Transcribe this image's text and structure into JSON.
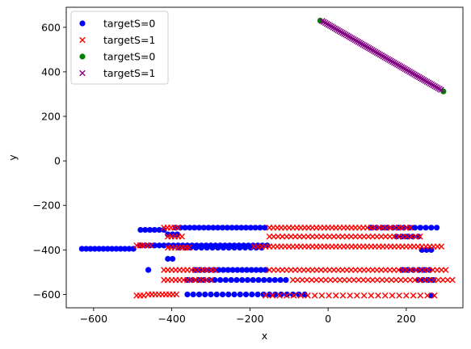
{
  "chart_data": {
    "type": "scatter",
    "title": "",
    "xlabel": "x",
    "ylabel": "y",
    "xlim": [
      -670,
      345
    ],
    "ylim": [
      -660,
      690
    ],
    "x_ticks": [
      -600,
      -400,
      -200,
      0,
      200
    ],
    "x_tick_labels": [
      "−600",
      "−400",
      "−200",
      "0",
      "200"
    ],
    "y_ticks": [
      -600,
      -400,
      -200,
      0,
      200,
      400,
      600
    ],
    "y_tick_labels": [
      "−600",
      "−400",
      "−200",
      "0",
      "200",
      "400",
      "600"
    ],
    "grid": false,
    "legend_position": "upper-left",
    "legend": [
      {
        "label": "targetS=0",
        "color": "#0000ff",
        "marker": "circle"
      },
      {
        "label": "targetS=1",
        "color": "#ff0000",
        "marker": "x"
      },
      {
        "label": "targetS=0",
        "color": "#008000",
        "marker": "circle"
      },
      {
        "label": "targetS=1",
        "color": "#800080",
        "marker": "x"
      }
    ],
    "series": [
      {
        "color": "#0000ff",
        "marker": "circle",
        "rows": [
          {
            "y": -300,
            "x_start": -390,
            "x_end": -160,
            "step": 12
          },
          {
            "y": -300,
            "x_start": 110,
            "x_end": 285,
            "step": 14
          },
          {
            "y": -310,
            "x_start": -480,
            "x_end": -410,
            "step": 12
          },
          {
            "y": -330,
            "x_start": -410,
            "x_end": -380,
            "step": 12
          },
          {
            "y": -340,
            "x_start": 175,
            "x_end": 240,
            "step": 14
          },
          {
            "y": -380,
            "x_start": -480,
            "x_end": -150,
            "step": 12
          },
          {
            "y": -395,
            "x_start": -630,
            "x_end": -490,
            "step": 11
          },
          {
            "y": -390,
            "x_start": -380,
            "x_end": -170,
            "step": 14
          },
          {
            "y": -400,
            "x_start": 240,
            "x_end": 270,
            "step": 12
          },
          {
            "y": -440,
            "x_start": -410,
            "x_end": -390,
            "step": 12
          },
          {
            "y": -490,
            "x_start": -460,
            "x_end": -460,
            "step": 12
          },
          {
            "y": -490,
            "x_start": -340,
            "x_end": -160,
            "step": 12
          },
          {
            "y": -490,
            "x_start": 190,
            "x_end": 270,
            "step": 14
          },
          {
            "y": -535,
            "x_start": -360,
            "x_end": -100,
            "step": 14
          },
          {
            "y": -535,
            "x_start": 230,
            "x_end": 270,
            "step": 13
          },
          {
            "y": -600,
            "x_start": -360,
            "x_end": -50,
            "step": 15
          },
          {
            "y": -605,
            "x_start": 265,
            "x_end": 265,
            "step": 12
          }
        ]
      },
      {
        "color": "#ff0000",
        "marker": "x",
        "rows": [
          {
            "y": -300,
            "x_start": -420,
            "x_end": -380,
            "step": 9
          },
          {
            "y": -300,
            "x_start": -150,
            "x_end": 210,
            "step": 10
          },
          {
            "y": -340,
            "x_start": -410,
            "x_end": -370,
            "step": 9
          },
          {
            "y": -340,
            "x_start": -150,
            "x_end": 240,
            "step": 11
          },
          {
            "y": -380,
            "x_start": -490,
            "x_end": -450,
            "step": 9
          },
          {
            "y": -390,
            "x_start": -410,
            "x_end": -350,
            "step": 9
          },
          {
            "y": -385,
            "x_start": -190,
            "x_end": 290,
            "step": 10
          },
          {
            "y": -490,
            "x_start": -420,
            "x_end": -290,
            "step": 10
          },
          {
            "y": -490,
            "x_start": -150,
            "x_end": 310,
            "step": 11
          },
          {
            "y": -535,
            "x_start": -420,
            "x_end": -300,
            "step": 10
          },
          {
            "y": -535,
            "x_start": -90,
            "x_end": 320,
            "step": 12
          },
          {
            "y": -600,
            "x_start": -460,
            "x_end": -380,
            "step": 9
          },
          {
            "y": -605,
            "x_start": -490,
            "x_end": -470,
            "step": 9
          },
          {
            "y": -605,
            "x_start": -160,
            "x_end": 280,
            "step": 18
          }
        ]
      },
      {
        "color": "#008000",
        "marker": "circle",
        "points": [
          [
            -20,
            630
          ],
          [
            295,
            312
          ]
        ]
      },
      {
        "color": "#800080",
        "marker": "x",
        "line": {
          "x_start": -15,
          "y_start": 628,
          "x_end": 290,
          "y_end": 318,
          "step": 4
        }
      }
    ]
  }
}
